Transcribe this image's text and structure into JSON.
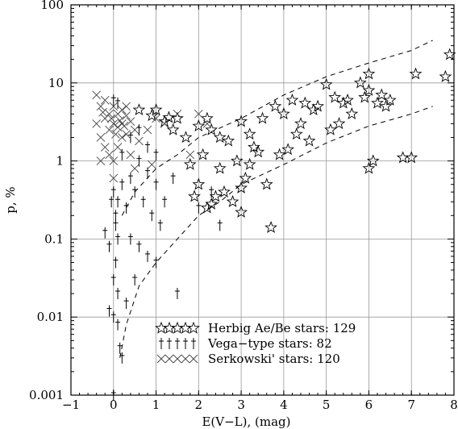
{
  "chart_data": {
    "type": "scatter",
    "title": "",
    "xlabel": "E(V−L), (mag)",
    "ylabel": "p, %",
    "xlim": [
      -1,
      8
    ],
    "ylim": [
      0.001,
      100
    ],
    "y_scale": "log",
    "grid": true,
    "x_ticks": [
      "−1",
      "0",
      "1",
      "2",
      "3",
      "4",
      "5",
      "6",
      "7",
      "8"
    ],
    "y_ticks": [
      "0.001",
      "0.01",
      "0.1",
      "1",
      "10",
      "100"
    ],
    "legend_position": "bottom-center",
    "series": [
      {
        "name": "Herbig Ae/Be stars: 129",
        "marker": "star",
        "points": [
          [
            0.6,
            4.5
          ],
          [
            0.9,
            3.8
          ],
          [
            1.0,
            4.5
          ],
          [
            1.2,
            3.2
          ],
          [
            1.3,
            3.6
          ],
          [
            1.5,
            3.5
          ],
          [
            1.7,
            2.0
          ],
          [
            2.0,
            2.8
          ],
          [
            2.2,
            3.5
          ],
          [
            2.3,
            2.5
          ],
          [
            2.5,
            2.0
          ],
          [
            2.7,
            1.8
          ],
          [
            3.0,
            3.2
          ],
          [
            3.2,
            2.2
          ],
          [
            3.5,
            3.5
          ],
          [
            3.8,
            5.0
          ],
          [
            4.0,
            4.0
          ],
          [
            4.2,
            6.0
          ],
          [
            4.5,
            5.5
          ],
          [
            4.8,
            5.0
          ],
          [
            5.0,
            9.5
          ],
          [
            5.2,
            6.5
          ],
          [
            5.5,
            6.0
          ],
          [
            5.8,
            10.0
          ],
          [
            6.0,
            8.0
          ],
          [
            6.2,
            5.5
          ],
          [
            6.3,
            7.0
          ],
          [
            6.5,
            6.0
          ],
          [
            6.0,
            13.0
          ],
          [
            7.1,
            13.0
          ],
          [
            7.8,
            12.0
          ],
          [
            7.9,
            23.0
          ],
          [
            6.8,
            1.1
          ],
          [
            7.0,
            1.1
          ],
          [
            6.0,
            0.8
          ],
          [
            6.1,
            1.0
          ],
          [
            3.7,
            0.14
          ],
          [
            2.2,
            0.25
          ],
          [
            2.4,
            0.35
          ],
          [
            2.8,
            0.3
          ],
          [
            3.0,
            0.22
          ],
          [
            2.0,
            0.5
          ],
          [
            1.8,
            0.9
          ],
          [
            2.5,
            0.8
          ],
          [
            2.9,
            1.0
          ],
          [
            3.1,
            0.6
          ],
          [
            3.4,
            1.3
          ],
          [
            3.6,
            0.5
          ],
          [
            4.1,
            1.4
          ],
          [
            4.3,
            2.2
          ],
          [
            4.6,
            1.8
          ],
          [
            5.1,
            2.5
          ],
          [
            5.3,
            3.0
          ],
          [
            5.6,
            4.0
          ],
          [
            3.3,
            1.5
          ],
          [
            3.9,
            1.2
          ],
          [
            4.4,
            3.0
          ],
          [
            2.1,
            1.2
          ],
          [
            2.6,
            0.4
          ],
          [
            1.4,
            2.5
          ],
          [
            1.9,
            0.35
          ],
          [
            2.3,
            0.28
          ],
          [
            3.2,
            0.9
          ],
          [
            4.7,
            4.5
          ],
          [
            5.4,
            5.5
          ],
          [
            5.9,
            6.5
          ],
          [
            6.4,
            5.0
          ],
          [
            3.0,
            0.45
          ]
        ]
      },
      {
        "name": "Vega−type stars: 82",
        "marker": "dagger",
        "points": [
          [
            0.0,
            0.4
          ],
          [
            0.05,
            0.2
          ],
          [
            0.1,
            0.1
          ],
          [
            0.0,
            0.03
          ],
          [
            0.05,
            0.05
          ],
          [
            0.1,
            0.02
          ],
          [
            0.0,
            0.01
          ],
          [
            0.1,
            0.008
          ],
          [
            0.15,
            0.004
          ],
          [
            0.2,
            0.003
          ],
          [
            0.0,
            0.001
          ],
          [
            0.05,
            0.15
          ],
          [
            0.1,
            0.3
          ],
          [
            0.2,
            0.5
          ],
          [
            0.4,
            0.6
          ],
          [
            0.6,
            1.0
          ],
          [
            0.8,
            0.7
          ],
          [
            1.0,
            0.5
          ],
          [
            1.2,
            0.3
          ],
          [
            1.4,
            0.6
          ],
          [
            0.3,
            0.25
          ],
          [
            0.5,
            0.4
          ],
          [
            0.7,
            0.3
          ],
          [
            0.9,
            0.2
          ],
          [
            1.1,
            0.15
          ],
          [
            0.4,
            0.1
          ],
          [
            0.6,
            0.08
          ],
          [
            0.8,
            0.06
          ],
          [
            1.0,
            0.05
          ],
          [
            0.5,
            0.03
          ],
          [
            0.3,
            0.015
          ],
          [
            1.5,
            0.02
          ],
          [
            2.5,
            0.15
          ],
          [
            2.0,
            0.25
          ],
          [
            2.3,
            0.4
          ],
          [
            0.2,
            1.2
          ],
          [
            0.4,
            2.0
          ],
          [
            0.8,
            1.5
          ],
          [
            1.0,
            1.2
          ],
          [
            -0.1,
            0.08
          ],
          [
            -0.2,
            0.12
          ],
          [
            -0.1,
            0.012
          ],
          [
            0.0,
            6.0
          ],
          [
            0.1,
            5.5
          ],
          [
            0.6,
            2.5
          ],
          [
            -0.05,
            0.3
          ]
        ]
      },
      {
        "name": "Serkowski' stars: 120",
        "marker": "cross",
        "points": [
          [
            -0.4,
            7.0
          ],
          [
            -0.3,
            5.0
          ],
          [
            -0.2,
            3.5
          ],
          [
            -0.1,
            2.5
          ],
          [
            0.0,
            3.0
          ],
          [
            0.1,
            4.0
          ],
          [
            0.2,
            2.0
          ],
          [
            0.3,
            5.0
          ],
          [
            0.4,
            3.2
          ],
          [
            0.5,
            2.5
          ],
          [
            -0.3,
            2.0
          ],
          [
            -0.2,
            1.5
          ],
          [
            -0.1,
            1.2
          ],
          [
            0.0,
            1.0
          ],
          [
            0.1,
            1.5
          ],
          [
            0.2,
            3.0
          ],
          [
            0.3,
            2.2
          ],
          [
            -0.4,
            3.0
          ],
          [
            -0.2,
            6.0
          ],
          [
            0.0,
            5.0
          ],
          [
            0.2,
            4.5
          ],
          [
            0.4,
            1.2
          ],
          [
            0.5,
            0.8
          ],
          [
            0.0,
            0.6
          ],
          [
            -0.1,
            4.0
          ],
          [
            0.1,
            2.7
          ],
          [
            0.3,
            3.8
          ],
          [
            -0.3,
            1.0
          ],
          [
            0.6,
            1.8
          ],
          [
            0.8,
            2.5
          ],
          [
            1.0,
            3.5
          ],
          [
            1.2,
            3.0
          ],
          [
            0.9,
            0.9
          ],
          [
            1.5,
            4.0
          ],
          [
            1.8,
            1.2
          ],
          [
            2.0,
            4.0
          ],
          [
            2.2,
            3.0
          ],
          [
            -0.05,
            3.5
          ],
          [
            0.15,
            3.3
          ],
          [
            0.25,
            2.8
          ],
          [
            0.05,
            2.2
          ],
          [
            -0.25,
            4.2
          ]
        ]
      }
    ],
    "model_curves": [
      {
        "style": "dashed",
        "points": [
          [
            0.2,
            0.2
          ],
          [
            0.5,
            0.4
          ],
          [
            1.0,
            0.8
          ],
          [
            1.5,
            1.2
          ],
          [
            2.0,
            2.0
          ],
          [
            3.0,
            3.5
          ],
          [
            4.0,
            7.0
          ],
          [
            5.0,
            12.0
          ],
          [
            6.0,
            18.0
          ],
          [
            7.0,
            26.0
          ],
          [
            7.5,
            35.0
          ]
        ]
      },
      {
        "style": "dashed",
        "points": [
          [
            0.15,
            0.003
          ],
          [
            0.3,
            0.008
          ],
          [
            0.6,
            0.025
          ],
          [
            1.0,
            0.05
          ],
          [
            1.5,
            0.1
          ],
          [
            2.0,
            0.2
          ],
          [
            2.5,
            0.3
          ],
          [
            3.0,
            0.5
          ],
          [
            4.0,
            0.9
          ],
          [
            5.0,
            1.7
          ],
          [
            6.0,
            2.8
          ],
          [
            7.0,
            4.0
          ],
          [
            7.5,
            5.0
          ]
        ]
      }
    ]
  }
}
